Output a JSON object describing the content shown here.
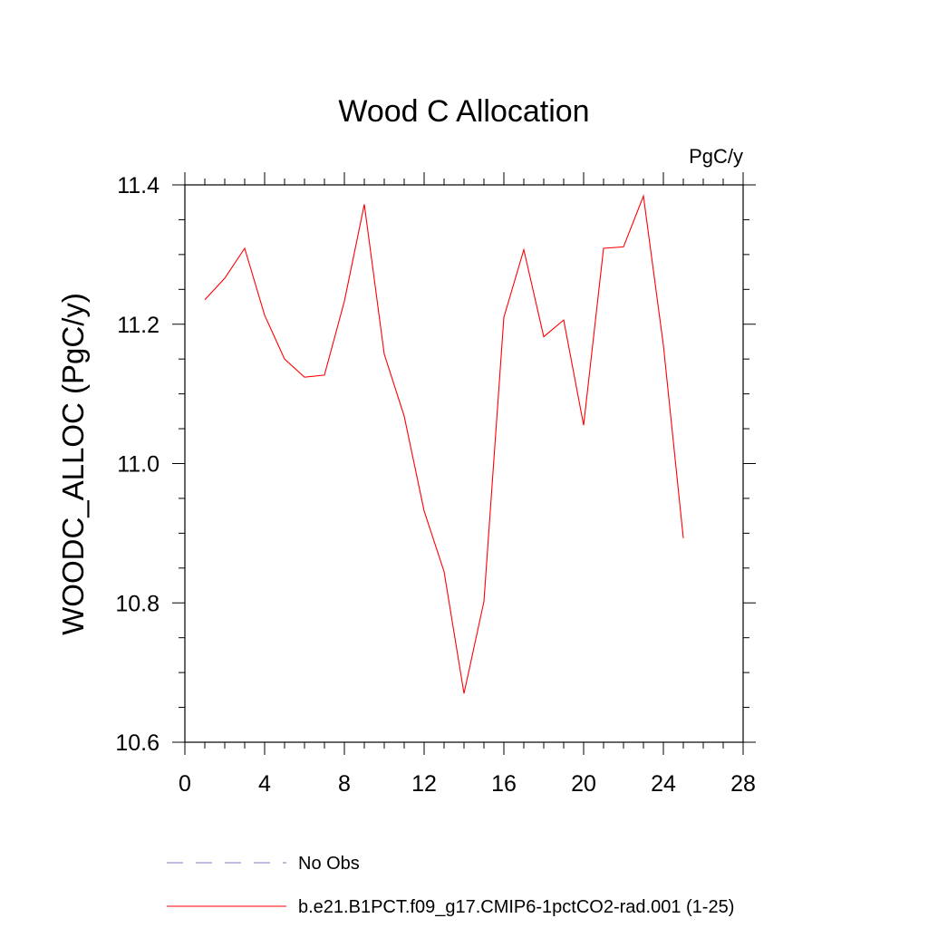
{
  "chart_data": {
    "type": "line",
    "title": "Wood C Allocation",
    "units_label": "PgC/y",
    "xlabel": "",
    "ylabel": "WOODC_ALLOC  (PgC/y)",
    "xlim": [
      0,
      28
    ],
    "ylim": [
      10.6,
      11.4
    ],
    "x_ticks": [
      "0",
      "4",
      "8",
      "12",
      "16",
      "20",
      "24",
      "28"
    ],
    "y_ticks": [
      "10.6",
      "10.8",
      "11.0",
      "11.2",
      "11.4"
    ],
    "grid": false,
    "legend_position": "bottom",
    "x": [
      1,
      2,
      3,
      4,
      5,
      6,
      7,
      8,
      9,
      10,
      11,
      12,
      13,
      14,
      15,
      16,
      17,
      18,
      19,
      20,
      21,
      22,
      23,
      24,
      25
    ],
    "series": [
      {
        "name": "b.e21.B1PCT.f09_g17.CMIP6-1pctCO2-rad.001 (1-25)",
        "color": "#ff0000",
        "style": "solid",
        "values": [
          11.235,
          11.266,
          11.309,
          11.213,
          11.15,
          11.124,
          11.127,
          11.233,
          11.372,
          11.157,
          11.068,
          10.932,
          10.845,
          10.67,
          10.802,
          11.21,
          11.307,
          11.182,
          11.206,
          11.055,
          11.309,
          11.311,
          11.384,
          11.17,
          10.893
        ]
      }
    ],
    "legend": [
      {
        "label": "No Obs",
        "color": "#7777cc",
        "style": "dashed"
      },
      {
        "label": "b.e21.B1PCT.f09_g17.CMIP6-1pctCO2-rad.001 (1-25)",
        "color": "#ff0000",
        "style": "solid"
      }
    ]
  }
}
